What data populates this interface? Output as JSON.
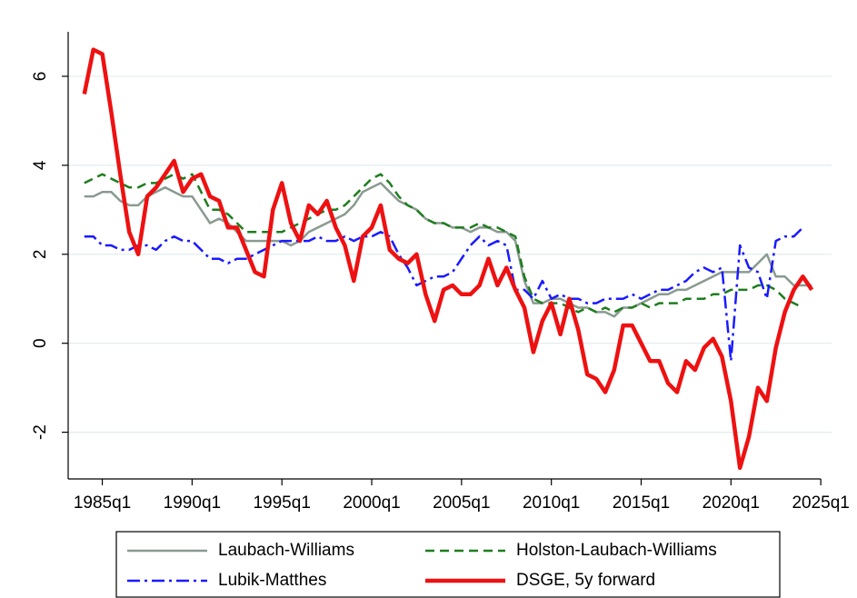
{
  "chart_data": {
    "type": "line",
    "x": [
      1984,
      1984.5,
      1985,
      1985.5,
      1986,
      1986.5,
      1987,
      1987.5,
      1988,
      1988.5,
      1989,
      1989.5,
      1990,
      1990.5,
      1991,
      1991.5,
      1992,
      1992.5,
      1993,
      1993.5,
      1994,
      1994.5,
      1995,
      1995.5,
      1996,
      1996.5,
      1997,
      1997.5,
      1998,
      1998.5,
      1999,
      1999.5,
      2000,
      2000.5,
      2001,
      2001.5,
      2002,
      2002.5,
      2003,
      2003.5,
      2004,
      2004.5,
      2005,
      2005.5,
      2006,
      2006.5,
      2007,
      2007.5,
      2008,
      2008.5,
      2009,
      2009.5,
      2010,
      2010.5,
      2011,
      2011.5,
      2012,
      2012.5,
      2013,
      2013.5,
      2014,
      2014.5,
      2015,
      2015.5,
      2016,
      2016.5,
      2017,
      2017.5,
      2018,
      2018.5,
      2019,
      2019.5,
      2020,
      2020.5,
      2021,
      2021.5,
      2022,
      2022.5,
      2023,
      2023.5,
      2024,
      2024.5
    ],
    "series": [
      {
        "name": "Laubach-Williams",
        "color": "#8a9a90",
        "dash": "solid",
        "width": 2.5,
        "values": [
          3.3,
          3.3,
          3.4,
          3.4,
          3.2,
          3.1,
          3.1,
          3.3,
          3.4,
          3.5,
          3.4,
          3.3,
          3.3,
          3.0,
          2.7,
          2.8,
          2.7,
          2.5,
          2.3,
          2.3,
          2.3,
          2.3,
          2.3,
          2.2,
          2.3,
          2.5,
          2.6,
          2.7,
          2.8,
          2.9,
          3.1,
          3.4,
          3.5,
          3.6,
          3.4,
          3.2,
          3.1,
          3.0,
          2.8,
          2.7,
          2.7,
          2.6,
          2.6,
          2.5,
          2.6,
          2.6,
          2.5,
          2.5,
          2.3,
          1.4,
          0.9,
          0.9,
          1.0,
          1.0,
          0.9,
          0.8,
          0.8,
          0.7,
          0.7,
          0.6,
          0.8,
          0.8,
          0.9,
          1.0,
          1.1,
          1.1,
          1.2,
          1.2,
          1.3,
          1.4,
          1.5,
          1.6,
          1.6,
          1.6,
          1.6,
          1.8,
          2.0,
          1.5,
          1.5,
          1.3,
          1.3,
          1.3
        ]
      },
      {
        "name": "Holston-Laubach-Williams",
        "color": "#1e7d1e",
        "dash": "dashed",
        "width": 2.5,
        "values": [
          3.6,
          3.7,
          3.8,
          3.7,
          3.6,
          3.5,
          3.5,
          3.6,
          3.6,
          3.7,
          3.8,
          3.7,
          3.8,
          3.4,
          3.0,
          3.0,
          2.9,
          2.7,
          2.5,
          2.5,
          2.5,
          2.5,
          2.5,
          2.6,
          2.7,
          2.8,
          2.9,
          3.0,
          3.0,
          3.1,
          3.3,
          3.5,
          3.7,
          3.8,
          3.6,
          3.3,
          3.1,
          3.0,
          2.8,
          2.7,
          2.7,
          2.6,
          2.6,
          2.6,
          2.7,
          2.6,
          2.6,
          2.5,
          2.4,
          1.5,
          1.0,
          0.9,
          0.9,
          0.9,
          0.8,
          0.7,
          0.8,
          0.7,
          0.8,
          0.7,
          0.8,
          0.8,
          0.9,
          0.8,
          0.9,
          0.9,
          0.9,
          1.0,
          1.0,
          1.0,
          1.1,
          1.1,
          1.2,
          1.2,
          1.2,
          1.3,
          1.3,
          1.2,
          1.0,
          0.9,
          0.8,
          null
        ]
      },
      {
        "name": "Lubik-Matthes",
        "color": "#1a1aff",
        "dash": "dashdot",
        "width": 2.5,
        "values": [
          2.4,
          2.4,
          2.2,
          2.2,
          2.1,
          2.1,
          2.2,
          2.2,
          2.1,
          2.3,
          2.4,
          2.3,
          2.3,
          2.1,
          1.9,
          1.9,
          1.8,
          1.9,
          1.9,
          2.0,
          2.1,
          2.2,
          2.3,
          2.3,
          2.3,
          2.3,
          2.4,
          2.3,
          2.3,
          2.4,
          2.3,
          2.4,
          2.4,
          2.5,
          2.4,
          2.0,
          1.7,
          1.3,
          1.4,
          1.5,
          1.5,
          1.6,
          1.9,
          2.2,
          2.4,
          2.2,
          2.3,
          2.2,
          1.2,
          1.2,
          1.0,
          1.4,
          1.0,
          1.1,
          1.0,
          1.0,
          0.9,
          0.9,
          1.0,
          1.0,
          1.0,
          1.1,
          1.0,
          1.1,
          1.2,
          1.2,
          1.3,
          1.4,
          1.6,
          1.7,
          1.6,
          1.7,
          -0.4,
          2.2,
          1.7,
          1.6,
          1.0,
          2.3,
          2.4,
          2.4,
          2.6,
          null
        ]
      },
      {
        "name": "DSGE, 5y forward",
        "color": "#ee1111",
        "dash": "solid",
        "width": 4.5,
        "values": [
          5.6,
          6.6,
          6.5,
          5.2,
          3.8,
          2.5,
          2.0,
          3.3,
          3.5,
          3.8,
          4.1,
          3.4,
          3.7,
          3.8,
          3.3,
          3.2,
          2.6,
          2.6,
          2.1,
          1.6,
          1.5,
          3.0,
          3.6,
          2.7,
          2.3,
          3.1,
          2.9,
          3.2,
          2.6,
          2.2,
          1.4,
          2.4,
          2.6,
          3.1,
          2.1,
          1.9,
          1.8,
          2.0,
          1.1,
          0.5,
          1.2,
          1.3,
          1.1,
          1.1,
          1.3,
          1.9,
          1.3,
          1.7,
          1.2,
          0.8,
          -0.2,
          0.5,
          0.9,
          0.2,
          1.0,
          0.3,
          -0.7,
          -0.8,
          -1.1,
          -0.6,
          0.4,
          0.4,
          0.0,
          -0.4,
          -0.4,
          -0.9,
          -1.1,
          -0.4,
          -0.6,
          -0.1,
          0.1,
          -0.3,
          -1.3,
          -2.8,
          -2.1,
          -1.0,
          -1.3,
          -0.1,
          0.7,
          1.2,
          1.5,
          1.2
        ]
      }
    ],
    "xlim": [
      1983.1,
      2025.6
    ],
    "xticks": [
      {
        "value": 1985,
        "label": "1985q1"
      },
      {
        "value": 1990,
        "label": "1990q1"
      },
      {
        "value": 1995,
        "label": "1995q1"
      },
      {
        "value": 2000,
        "label": "2000q1"
      },
      {
        "value": 2005,
        "label": "2005q1"
      },
      {
        "value": 2010,
        "label": "2010q1"
      },
      {
        "value": 2015,
        "label": "2015q1"
      },
      {
        "value": 2020,
        "label": "2020q1"
      },
      {
        "value": 2025,
        "label": "2025q1"
      }
    ],
    "ylim": [
      -3.05,
      7
    ],
    "yticks": [
      -2,
      0,
      2,
      4,
      6
    ],
    "grid": true,
    "legend": "bottom"
  }
}
